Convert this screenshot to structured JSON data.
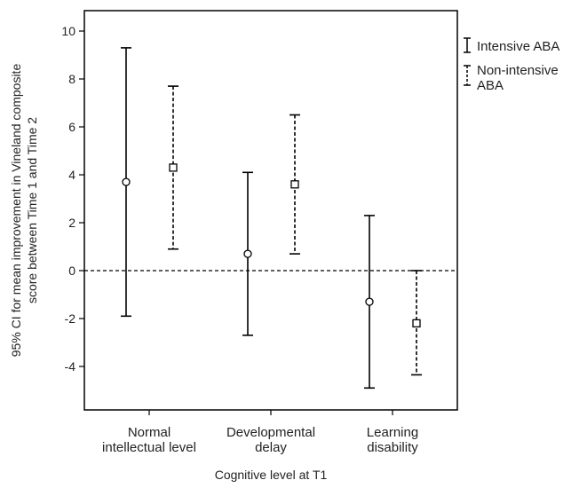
{
  "chart_data": {
    "type": "errorbar",
    "categories": [
      [
        "Normal",
        "intellectual level"
      ],
      [
        "Developmental",
        "delay"
      ],
      [
        "Learning",
        "disability"
      ]
    ],
    "xlabel": "Cognitive level at T1",
    "ylabel": [
      "95% CI for mean improvement in Vineland composite",
      "score between Time 1 and Time 2"
    ],
    "ylim": [
      -6,
      10.5
    ],
    "yticks": [
      -4,
      -2,
      0,
      2,
      4,
      6,
      8,
      10
    ],
    "reference_line": 0,
    "legend_position": "right",
    "series": [
      {
        "name": "Intensive ABA",
        "marker": "circle",
        "line": "solid",
        "means": [
          3.7,
          0.7,
          -1.3
        ],
        "lower": [
          -1.9,
          -2.7,
          -4.9
        ],
        "upper": [
          9.3,
          4.1,
          2.3
        ]
      },
      {
        "name": [
          "Non-intensive",
          "ABA"
        ],
        "marker": "square",
        "line": "dashed",
        "means": [
          4.3,
          3.6,
          -2.2
        ],
        "lower": [
          0.9,
          0.7,
          -4.35
        ],
        "upper": [
          7.7,
          6.5,
          0.0
        ]
      }
    ]
  }
}
